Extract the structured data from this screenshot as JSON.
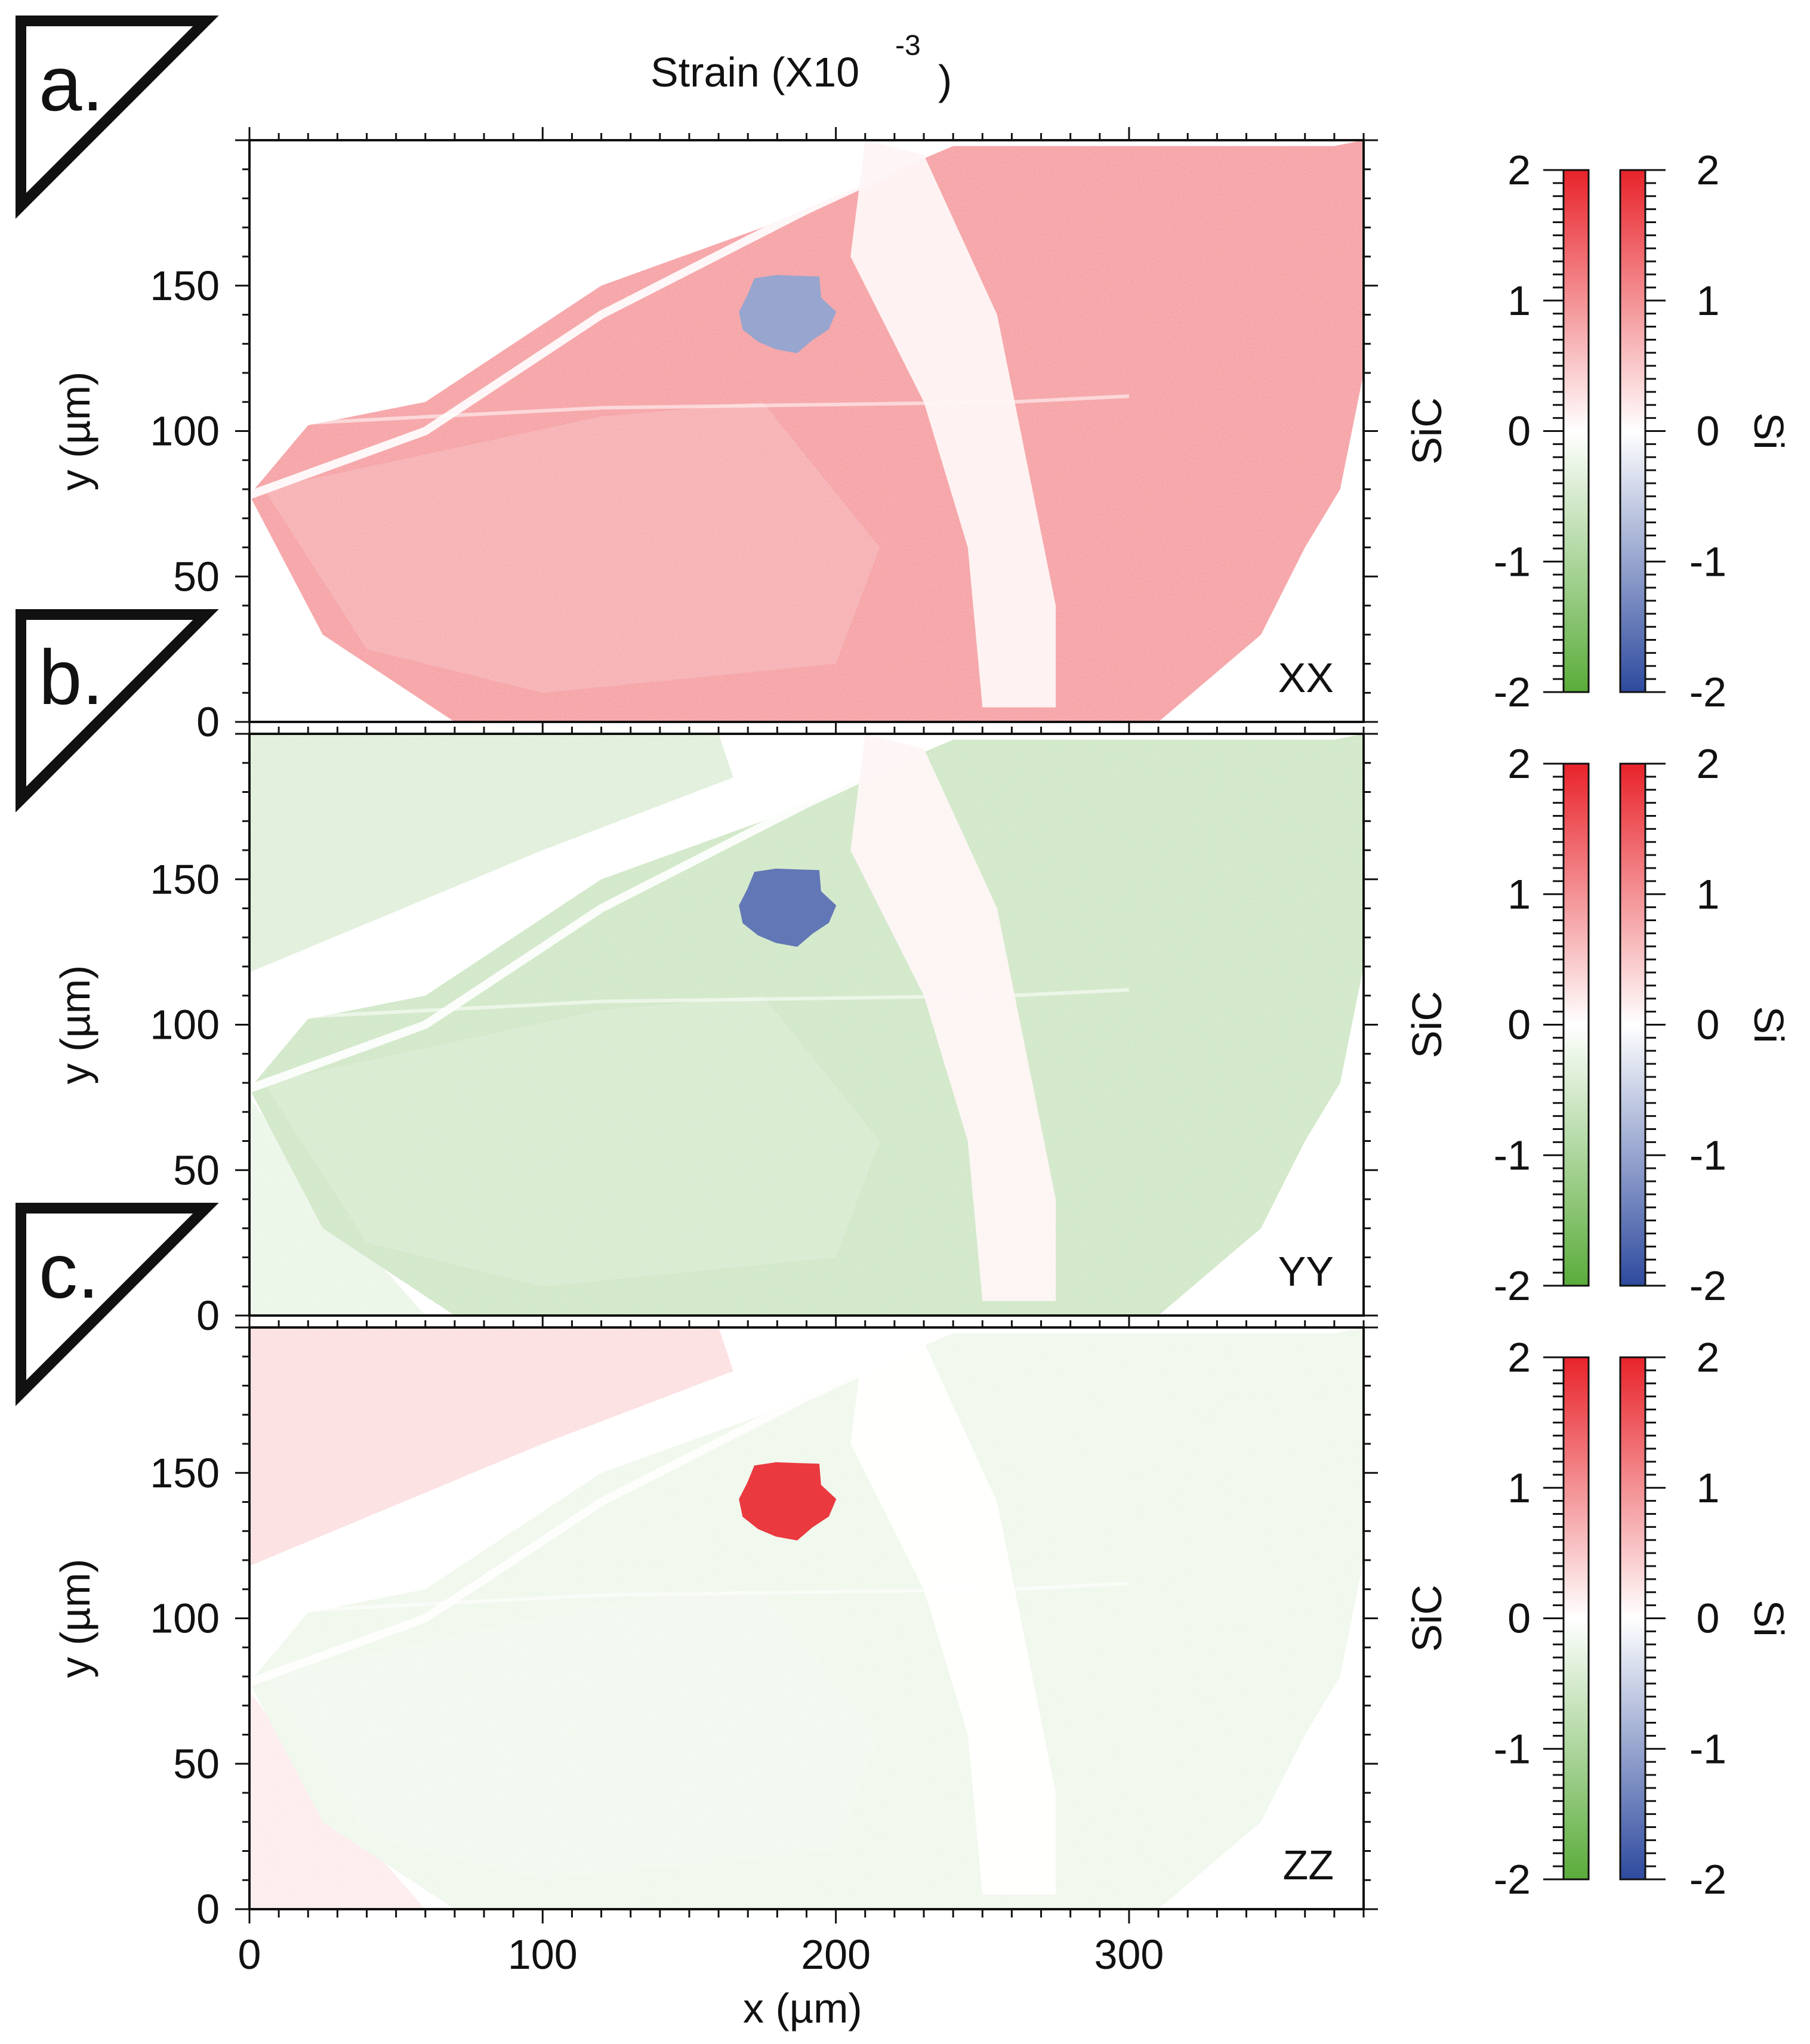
{
  "figure": {
    "title": "Strain (X10",
    "title_exponent": "-3",
    "title_close": ")",
    "xlabel": "x (µm)",
    "ylabel": "y (µm)"
  },
  "colors": {
    "sic_positive": "#e8232a",
    "sic_negative": "#5aac3a",
    "si_positive": "#e8232a",
    "si_negative": "#2e4a9e",
    "zero": "#ffffff",
    "frame": "#111111"
  },
  "chart_data": [
    {
      "type": "heatmap",
      "panel_label": "a.",
      "component": "XX",
      "xlim": [
        0,
        380
      ],
      "ylim": [
        0,
        200
      ],
      "x_ticks": [
        0,
        100,
        200,
        300
      ],
      "y_ticks": [
        0,
        50,
        100,
        150
      ],
      "x_tick_labels_shown": false,
      "colorbar": {
        "left_label": "SiC",
        "right_label": "Si",
        "range": [
          -2,
          2
        ],
        "ticks": [
          2,
          1,
          0,
          -1,
          -2
        ],
        "tick_labels": [
          "2",
          "1",
          "0",
          "-1",
          "-2"
        ]
      },
      "regions": [
        {
          "name": "SiC grain",
          "mean_strain": 0.9
        },
        {
          "name": "Si inclusion",
          "mean_strain": -1.0
        },
        {
          "name": "vertical streak",
          "mean_strain": 0.1
        },
        {
          "name": "upper-left matrix",
          "mean_strain": 0.0
        }
      ]
    },
    {
      "type": "heatmap",
      "panel_label": "b.",
      "component": "YY",
      "xlim": [
        0,
        380
      ],
      "ylim": [
        0,
        200
      ],
      "x_ticks": [
        0,
        100,
        200,
        300
      ],
      "y_ticks": [
        0,
        50,
        100,
        150
      ],
      "x_tick_labels_shown": false,
      "colorbar": {
        "left_label": "SiC",
        "right_label": "Si",
        "range": [
          -2,
          2
        ],
        "ticks": [
          2,
          1,
          0,
          -1,
          -2
        ],
        "tick_labels": [
          "2",
          "1",
          "0",
          "-1",
          "-2"
        ]
      },
      "regions": [
        {
          "name": "SiC grain",
          "mean_strain": -0.6
        },
        {
          "name": "Si inclusion",
          "mean_strain": -1.5
        },
        {
          "name": "vertical streak",
          "mean_strain": 0.1
        },
        {
          "name": "upper-left matrix",
          "mean_strain": -0.4
        }
      ]
    },
    {
      "type": "heatmap",
      "panel_label": "c.",
      "component": "ZZ",
      "xlim": [
        0,
        380
      ],
      "ylim": [
        0,
        200
      ],
      "x_ticks": [
        0,
        100,
        200,
        300
      ],
      "y_ticks": [
        0,
        50,
        100,
        150
      ],
      "x_tick_labels_shown": true,
      "x_tick_labels": [
        "0",
        "100",
        "200",
        "300"
      ],
      "colorbar": {
        "left_label": "SiC",
        "right_label": "Si",
        "range": [
          -2,
          2
        ],
        "ticks": [
          2,
          1,
          0,
          -1,
          -2
        ],
        "tick_labels": [
          "2",
          "1",
          "0",
          "-1",
          "-2"
        ]
      },
      "regions": [
        {
          "name": "SiC grain",
          "mean_strain": -0.2
        },
        {
          "name": "Si inclusion",
          "mean_strain": 1.8
        },
        {
          "name": "vertical streak",
          "mean_strain": 0.0
        },
        {
          "name": "upper-left matrix",
          "mean_strain": 0.3
        }
      ]
    }
  ]
}
